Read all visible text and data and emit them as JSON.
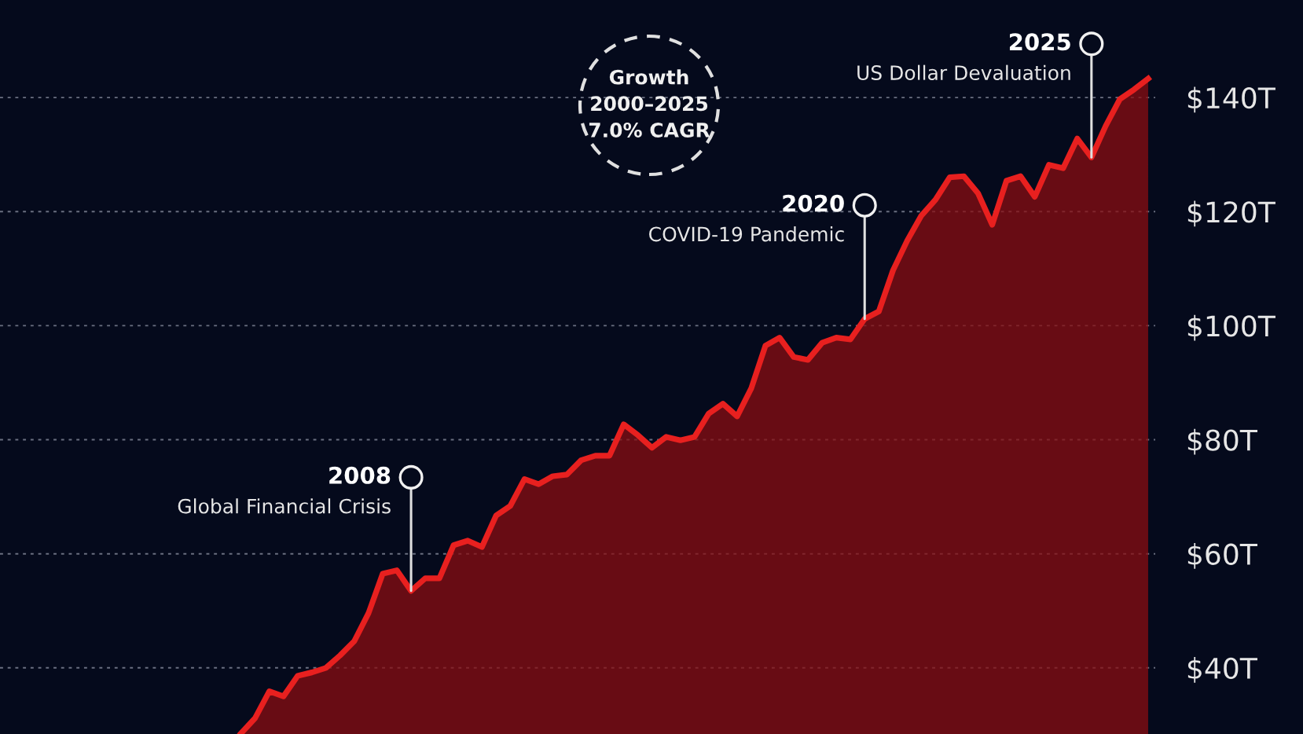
{
  "chart_data": {
    "type": "area",
    "categories": [
      null,
      null,
      null,
      null,
      null,
      null,
      null,
      null,
      null,
      null,
      null,
      null,
      null,
      null,
      null,
      null,
      null,
      null,
      null,
      null,
      null,
      null,
      null,
      null,
      null,
      null,
      null,
      null,
      null,
      null,
      null,
      null,
      null,
      null,
      null,
      null,
      null,
      null,
      null,
      null,
      null,
      null,
      null,
      null,
      null,
      null,
      null,
      null,
      null,
      null,
      null,
      null,
      null,
      null,
      null,
      null,
      null,
      null,
      null,
      null,
      null,
      null,
      null,
      null,
      null
    ],
    "series": [
      {
        "color": "#e8201f",
        "values": [
          28.5,
          31.2,
          35.9,
          35.0,
          38.6,
          39.2,
          40.0,
          42.2,
          44.7,
          49.6,
          56.5,
          57.1,
          53.5,
          55.7,
          55.7,
          61.5,
          62.3,
          61.2,
          66.7,
          68.4,
          73.1,
          72.2,
          73.6,
          73.9,
          76.4,
          77.2,
          77.2,
          82.7,
          80.8,
          78.6,
          80.5,
          79.9,
          80.5,
          84.6,
          86.3,
          84.1,
          89.0,
          96.5,
          97.9,
          94.5,
          94.0,
          97.0,
          97.9,
          97.6,
          101.2,
          102.5,
          109.7,
          114.9,
          119.3,
          122.1,
          126.0,
          126.2,
          123.2,
          117.7,
          125.4,
          126.2,
          122.6,
          128.2,
          127.6,
          132.8,
          129.5,
          135.0,
          139.7,
          141.4,
          143.3
        ]
      }
    ],
    "ylim": [
      28.4,
      157.1
    ],
    "yticks": [
      {
        "value": 40,
        "label": "$40T"
      },
      {
        "value": 60,
        "label": "$60T"
      },
      {
        "value": 80,
        "label": "$80T"
      },
      {
        "value": 100,
        "label": "$100T"
      },
      {
        "value": 120,
        "label": "$120T"
      },
      {
        "value": 140,
        "label": "$140T"
      }
    ],
    "tick_labels": "y",
    "grid": "y",
    "annotations": [
      "2008\nGlobal Financial Crisis",
      "2020\nCOVID-19 Pandemic",
      "2025\nUS Dollar Devaluation",
      "Growth\n2000–2025\n7.0% CAGR"
    ]
  }
}
